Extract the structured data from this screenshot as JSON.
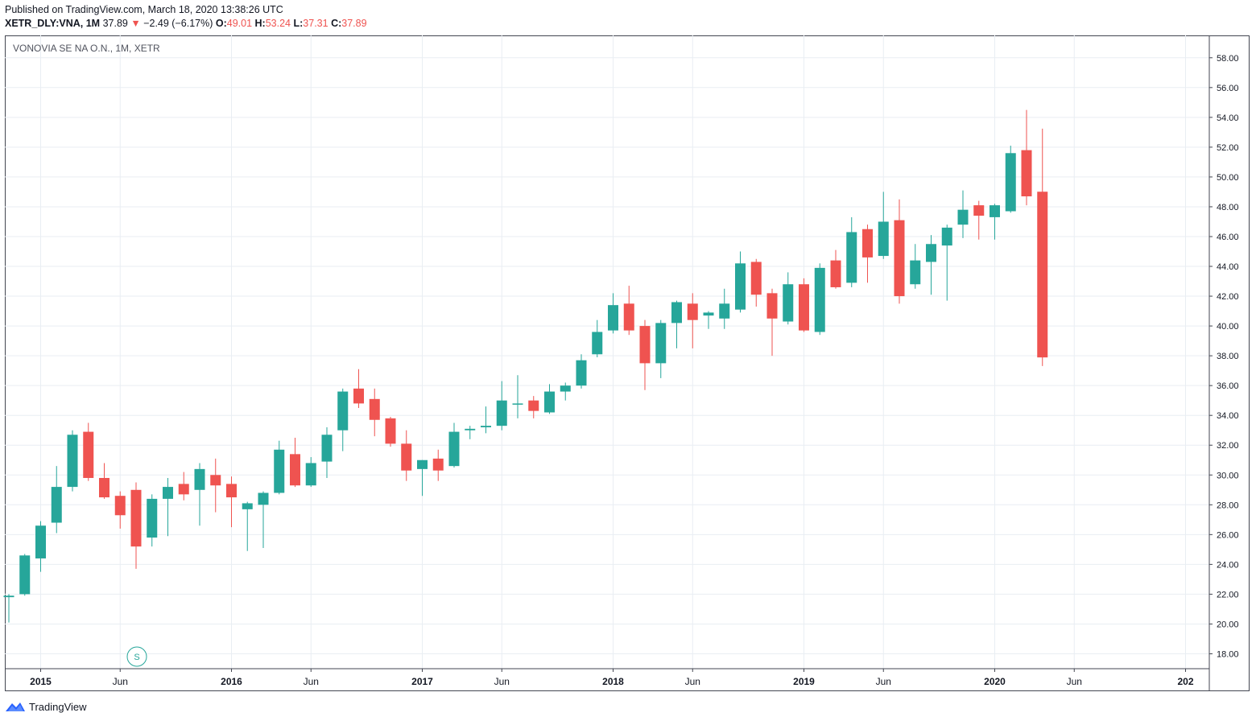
{
  "published": "Published on TradingView.com, March 18, 2020 13:38:26 UTC",
  "legend": {
    "symbol": "XETR_DLY:VNA, 1M",
    "last": "37.89",
    "arrow": "▼",
    "change": "−2.49 (−6.17%)",
    "o_label": "O:",
    "o": "49.01",
    "h_label": "H:",
    "h": "53.24",
    "l_label": "L:",
    "l": "37.31",
    "c_label": "C:",
    "c": "37.89"
  },
  "chart_title": "VONOVIA SE NA O.N., 1M, XETR",
  "marker": "S",
  "footer_brand": "TradingView",
  "colors": {
    "up": "#26a69a",
    "down": "#ef5350",
    "grid": "#e9eef3",
    "border": "#434651"
  },
  "chart_data": {
    "type": "candlestick",
    "interval": "1M",
    "ylim": [
      17,
      59.5
    ],
    "y_ticks": [
      "18.00",
      "20.00",
      "22.00",
      "24.00",
      "26.00",
      "28.00",
      "30.00",
      "32.00",
      "34.00",
      "36.00",
      "38.00",
      "40.00",
      "42.00",
      "44.00",
      "46.00",
      "48.00",
      "50.00",
      "52.00",
      "54.00",
      "56.00",
      "58.00"
    ],
    "x_ticks": [
      {
        "label": "2015",
        "month": 2,
        "bold": true
      },
      {
        "label": "Jun",
        "month": 7,
        "bold": false
      },
      {
        "label": "2016",
        "month": 14,
        "bold": true
      },
      {
        "label": "Jun",
        "month": 19,
        "bold": false
      },
      {
        "label": "2017",
        "month": 26,
        "bold": true
      },
      {
        "label": "Jun",
        "month": 31,
        "bold": false
      },
      {
        "label": "2018",
        "month": 38,
        "bold": true
      },
      {
        "label": "Jun",
        "month": 43,
        "bold": false
      },
      {
        "label": "2019",
        "month": 50,
        "bold": true
      },
      {
        "label": "Jun",
        "month": 55,
        "bold": false
      },
      {
        "label": "2020",
        "month": 62,
        "bold": true
      },
      {
        "label": "Jun",
        "month": 67,
        "bold": false
      },
      {
        "label": "202",
        "month": 74,
        "bold": true
      }
    ],
    "ohlc": [
      [
        21.8,
        22.0,
        20.1,
        21.9
      ],
      [
        22.0,
        24.7,
        21.9,
        24.6
      ],
      [
        24.4,
        26.9,
        23.5,
        26.6
      ],
      [
        26.8,
        30.6,
        26.1,
        29.2
      ],
      [
        29.2,
        33.0,
        28.9,
        32.7
      ],
      [
        32.9,
        33.5,
        29.6,
        29.8
      ],
      [
        29.8,
        30.8,
        28.4,
        28.5
      ],
      [
        28.6,
        28.9,
        26.4,
        27.3
      ],
      [
        29.0,
        29.5,
        23.7,
        25.2
      ],
      [
        25.8,
        28.7,
        25.2,
        28.4
      ],
      [
        28.4,
        29.8,
        25.9,
        29.2
      ],
      [
        29.4,
        30.2,
        28.3,
        28.7
      ],
      [
        29.0,
        30.8,
        26.6,
        30.4
      ],
      [
        30.0,
        31.1,
        27.5,
        29.3
      ],
      [
        29.4,
        29.9,
        26.5,
        28.5
      ],
      [
        27.7,
        28.2,
        24.9,
        28.1
      ],
      [
        28.0,
        28.9,
        25.1,
        28.8
      ],
      [
        28.8,
        32.3,
        28.7,
        31.7
      ],
      [
        31.4,
        32.5,
        29.2,
        29.3
      ],
      [
        29.3,
        31.2,
        29.2,
        30.8
      ],
      [
        30.9,
        33.2,
        29.8,
        32.7
      ],
      [
        33.0,
        35.8,
        31.6,
        35.6
      ],
      [
        35.8,
        37.1,
        34.5,
        34.8
      ],
      [
        35.1,
        35.8,
        32.6,
        33.7
      ],
      [
        33.8,
        33.9,
        31.9,
        32.1
      ],
      [
        32.1,
        33.0,
        29.6,
        30.3
      ],
      [
        30.4,
        31.0,
        28.6,
        31.0
      ],
      [
        31.1,
        31.7,
        29.6,
        30.3
      ],
      [
        30.6,
        33.5,
        30.5,
        32.9
      ],
      [
        33.0,
        33.3,
        32.4,
        33.1
      ],
      [
        33.2,
        34.6,
        32.8,
        33.3
      ],
      [
        33.3,
        36.3,
        33.0,
        35.0
      ],
      [
        34.8,
        36.7,
        33.8,
        34.8
      ],
      [
        35.0,
        35.3,
        33.8,
        34.3
      ],
      [
        34.2,
        36.1,
        34.1,
        35.6
      ],
      [
        35.6,
        36.2,
        35.0,
        36.0
      ],
      [
        36.0,
        38.1,
        35.8,
        37.7
      ],
      [
        38.1,
        40.4,
        37.9,
        39.6
      ],
      [
        39.7,
        42.2,
        39.5,
        41.4
      ],
      [
        41.5,
        42.7,
        39.4,
        39.7
      ],
      [
        40.0,
        40.4,
        35.7,
        37.5
      ],
      [
        37.5,
        40.4,
        36.5,
        40.2
      ],
      [
        40.2,
        41.7,
        38.5,
        41.6
      ],
      [
        41.5,
        42.2,
        38.5,
        40.4
      ],
      [
        40.7,
        41.0,
        39.8,
        40.9
      ],
      [
        40.5,
        42.5,
        39.8,
        41.5
      ],
      [
        41.1,
        45.0,
        40.9,
        44.2
      ],
      [
        44.3,
        44.5,
        41.3,
        42.1
      ],
      [
        42.2,
        42.5,
        38.0,
        40.5
      ],
      [
        40.3,
        43.6,
        40.1,
        42.8
      ],
      [
        42.8,
        43.2,
        39.6,
        39.7
      ],
      [
        39.6,
        44.2,
        39.4,
        43.9
      ],
      [
        44.4,
        45.1,
        42.5,
        42.6
      ],
      [
        42.9,
        47.3,
        42.6,
        46.3
      ],
      [
        46.5,
        46.8,
        42.9,
        44.6
      ],
      [
        44.7,
        49.0,
        44.5,
        47.0
      ],
      [
        47.1,
        48.5,
        41.5,
        42.0
      ],
      [
        42.8,
        45.5,
        42.5,
        44.4
      ],
      [
        44.3,
        46.1,
        42.1,
        45.5
      ],
      [
        45.4,
        46.8,
        41.7,
        46.6
      ],
      [
        46.8,
        49.1,
        45.9,
        47.8
      ],
      [
        48.1,
        48.4,
        45.8,
        47.4
      ],
      [
        47.3,
        48.2,
        45.8,
        48.1
      ],
      [
        47.7,
        52.1,
        47.6,
        51.6
      ],
      [
        51.8,
        54.5,
        48.1,
        48.7
      ],
      [
        49.01,
        53.24,
        37.31,
        37.89
      ]
    ]
  }
}
